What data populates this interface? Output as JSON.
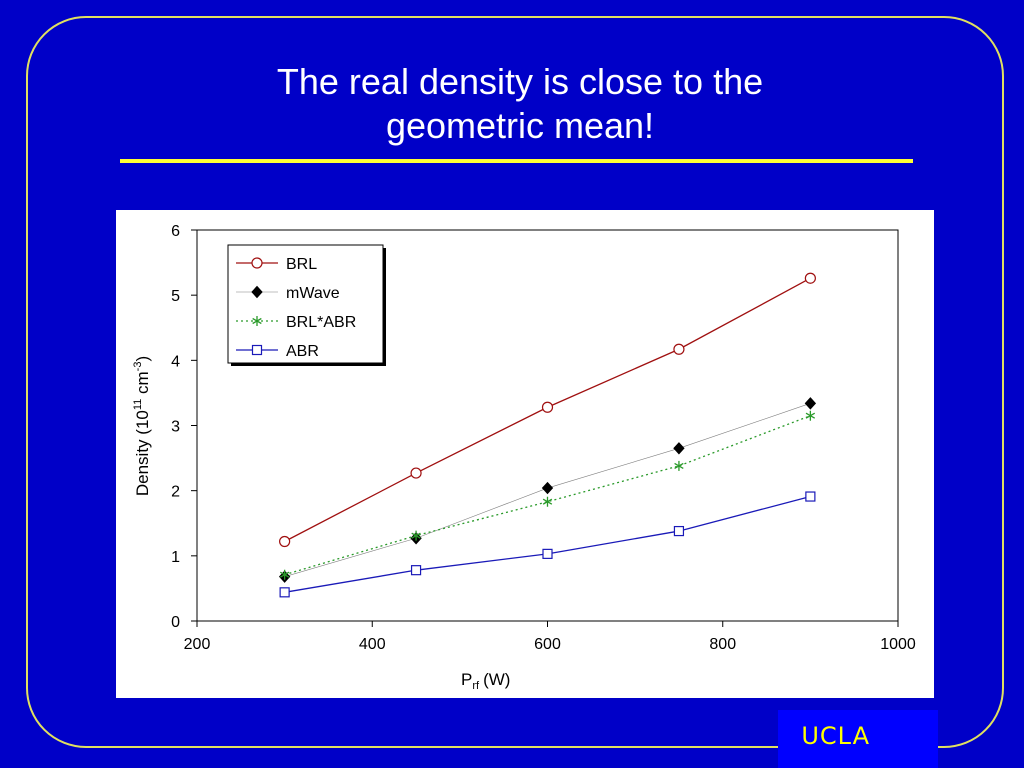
{
  "slide": {
    "title_line1": "The real density is close to the",
    "title_line2": "geometric mean!",
    "badge": "UCLA",
    "colors": {
      "background": "#0000c8",
      "frame": "#e0e060",
      "rule": "#ffff33",
      "badge_bg": "#0000ff",
      "badge_text": "#ffff00"
    }
  },
  "chart_data": {
    "type": "line",
    "x": [
      300,
      450,
      600,
      750,
      900
    ],
    "series": [
      {
        "name": "BRL",
        "values": [
          1.22,
          2.27,
          3.28,
          4.17,
          5.26
        ],
        "color": "#a01010",
        "marker": "open-circle",
        "dash": "solid"
      },
      {
        "name": "mWave",
        "values": [
          0.68,
          1.27,
          2.04,
          2.65,
          3.34
        ],
        "color": "#808080",
        "marker": "filled-diamond",
        "dash": "solid"
      },
      {
        "name": "BRL*ABR",
        "values": [
          0.71,
          1.31,
          1.83,
          2.38,
          3.15
        ],
        "color": "#2a9a2a",
        "marker": "asterisk",
        "dash": "dotted"
      },
      {
        "name": "ABR",
        "values": [
          0.44,
          0.78,
          1.03,
          1.38,
          1.91
        ],
        "color": "#1a1ab8",
        "marker": "open-square",
        "dash": "solid"
      }
    ],
    "xlabel_main": "P",
    "xlabel_sub": "rf",
    "xlabel_unit": "(W)",
    "ylabel_main": "Density (10",
    "ylabel_sup1": "11",
    "ylabel_mid": " cm",
    "ylabel_sup2": "-3",
    "ylabel_end": ")",
    "xlim": [
      200,
      1000
    ],
    "ylim": [
      0,
      6
    ],
    "xticks": [
      "200",
      "400",
      "600",
      "800",
      "1000"
    ],
    "yticks": [
      "0",
      "1",
      "2",
      "3",
      "4",
      "5",
      "6"
    ],
    "grid": false,
    "legend_position": "top-left"
  }
}
